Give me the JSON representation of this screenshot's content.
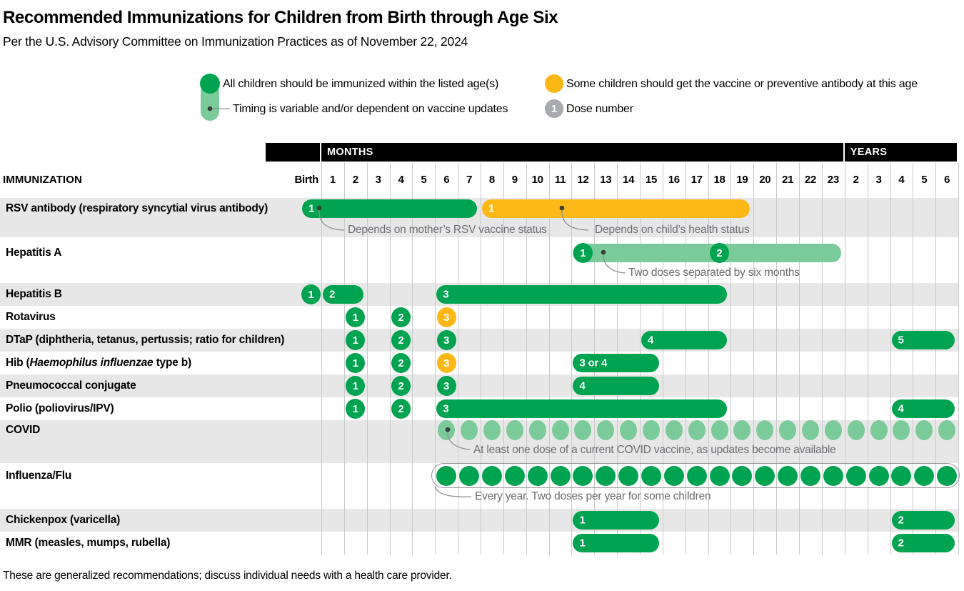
{
  "title": "Recommended Immunizations for Children from Birth through Age Six",
  "subtitle": "Per the U.S. Advisory Committee on Immunization Practices as of November 22, 2024",
  "footnote": "These are generalized recommendations; discuss individual needs with a health care provider.",
  "legend": {
    "all_children": "All children should be immunized within the listed age(s)",
    "timing_variable": "Timing is variable and/or dependent on vaccine updates",
    "some_children": "Some children should get the vaccine or preventive antibody at this age",
    "dose_number_label": "Dose number",
    "dose_sample": "1"
  },
  "colors": {
    "green": "#00a34f",
    "light_green": "#7bca9a",
    "yellow": "#fdb717",
    "gray_dose_circle": "#a8aaad",
    "row_stripe": "#e7e7e8",
    "grid_line": "#c9cacc",
    "annotation_text": "#6b6d70",
    "header_bar": "#000000"
  },
  "chart_data": {
    "type": "table",
    "subtype": "immunization-schedule-timeline",
    "row_header": "IMMUNIZATION",
    "axis_groups": [
      {
        "label": "MONTHS"
      },
      {
        "label": "YEARS"
      }
    ],
    "columns": [
      "Birth",
      "1",
      "2",
      "3",
      "4",
      "5",
      "6",
      "7",
      "8",
      "9",
      "10",
      "11",
      "12",
      "13",
      "14",
      "15",
      "16",
      "17",
      "18",
      "19",
      "20",
      "21",
      "22",
      "23",
      "2",
      "3",
      "4",
      "5",
      "6"
    ],
    "rows": [
      {
        "label_parts": [
          [
            "RSV antibody (respiratory syncytial virus antibody)",
            false
          ]
        ],
        "marks": [
          {
            "kind": "bar",
            "color": "green",
            "dose": "1",
            "from": 0,
            "to": 7
          },
          {
            "kind": "bar",
            "color": "yellow",
            "dose": "1",
            "from": 8,
            "to": 19
          }
        ],
        "notes": [
          "Depends on mother’s RSV vaccine status",
          "Depends on child’s health status"
        ]
      },
      {
        "label_parts": [
          [
            "Hepatitis A",
            false
          ]
        ],
        "marks": [
          {
            "kind": "bar",
            "color": "lightgreen",
            "from": 12,
            "to": 23
          },
          {
            "kind": "circle",
            "color": "green",
            "dose": "1",
            "col": 12
          },
          {
            "kind": "circle",
            "color": "green",
            "dose": "2",
            "col": 18
          }
        ],
        "notes": [
          "Two doses separated by six months"
        ]
      },
      {
        "label_parts": [
          [
            "Hepatitis B",
            false
          ]
        ],
        "marks": [
          {
            "kind": "circle",
            "color": "green",
            "dose": "1",
            "col": 0
          },
          {
            "kind": "bar",
            "color": "green",
            "dose": "2",
            "from": 1,
            "to": 2
          },
          {
            "kind": "bar",
            "color": "green",
            "dose": "3",
            "from": 6,
            "to": 18
          }
        ]
      },
      {
        "label_parts": [
          [
            "Rotavirus",
            false
          ]
        ],
        "marks": [
          {
            "kind": "circle",
            "color": "green",
            "dose": "1",
            "col": 2
          },
          {
            "kind": "circle",
            "color": "green",
            "dose": "2",
            "col": 4
          },
          {
            "kind": "circle",
            "color": "yellow",
            "dose": "3",
            "col": 6
          }
        ]
      },
      {
        "label_parts": [
          [
            "DTaP (diphtheria, tetanus, pertussis; ratio for children)",
            false
          ]
        ],
        "marks": [
          {
            "kind": "circle",
            "color": "green",
            "dose": "1",
            "col": 2
          },
          {
            "kind": "circle",
            "color": "green",
            "dose": "2",
            "col": 4
          },
          {
            "kind": "circle",
            "color": "green",
            "dose": "3",
            "col": 6
          },
          {
            "kind": "bar",
            "color": "green",
            "dose": "4",
            "from": 15,
            "to": 18
          },
          {
            "kind": "bar",
            "color": "green",
            "dose": "5",
            "from": 26,
            "to": 28
          }
        ]
      },
      {
        "label_parts": [
          [
            "Hib (",
            false
          ],
          [
            "Haemophilus influenzae",
            true
          ],
          [
            " type b)",
            false
          ]
        ],
        "marks": [
          {
            "kind": "circle",
            "color": "green",
            "dose": "1",
            "col": 2
          },
          {
            "kind": "circle",
            "color": "green",
            "dose": "2",
            "col": 4
          },
          {
            "kind": "circle",
            "color": "yellow",
            "dose": "3",
            "col": 6
          },
          {
            "kind": "bar",
            "color": "green",
            "dose": "3 or 4",
            "from": 12,
            "to": 15
          }
        ]
      },
      {
        "label_parts": [
          [
            "Pneumococcal conjugate",
            false
          ]
        ],
        "marks": [
          {
            "kind": "circle",
            "color": "green",
            "dose": "1",
            "col": 2
          },
          {
            "kind": "circle",
            "color": "green",
            "dose": "2",
            "col": 4
          },
          {
            "kind": "circle",
            "color": "green",
            "dose": "3",
            "col": 6
          },
          {
            "kind": "bar",
            "color": "green",
            "dose": "4",
            "from": 12,
            "to": 15
          }
        ]
      },
      {
        "label_parts": [
          [
            "Polio (poliovirus/IPV)",
            false
          ]
        ],
        "marks": [
          {
            "kind": "circle",
            "color": "green",
            "dose": "1",
            "col": 2
          },
          {
            "kind": "circle",
            "color": "green",
            "dose": "2",
            "col": 4
          },
          {
            "kind": "bar",
            "color": "green",
            "dose": "3",
            "from": 6,
            "to": 18
          },
          {
            "kind": "bar",
            "color": "green",
            "dose": "4",
            "from": 26,
            "to": 28
          }
        ]
      },
      {
        "label_parts": [
          [
            "COVID",
            false
          ]
        ],
        "marks": [
          {
            "kind": "dots",
            "color": "lightgreen",
            "from": 6,
            "to": 28
          }
        ],
        "notes": [
          "At least one dose of a current COVID vaccine, as updates become available"
        ]
      },
      {
        "label_parts": [
          [
            "Influenza/Flu",
            false
          ]
        ],
        "marks": [
          {
            "kind": "dots",
            "color": "green",
            "from": 6,
            "to": 28,
            "outline": true
          }
        ],
        "notes": [
          "Every year. Two doses per year for some children"
        ]
      },
      {
        "label_parts": [
          [
            "Chickenpox (varicella)",
            false
          ]
        ],
        "marks": [
          {
            "kind": "bar",
            "color": "green",
            "dose": "1",
            "from": 12,
            "to": 15
          },
          {
            "kind": "bar",
            "color": "green",
            "dose": "2",
            "from": 26,
            "to": 28
          }
        ]
      },
      {
        "label_parts": [
          [
            "MMR (measles, mumps, rubella)",
            false
          ]
        ],
        "marks": [
          {
            "kind": "bar",
            "color": "green",
            "dose": "1",
            "from": 12,
            "to": 15
          },
          {
            "kind": "bar",
            "color": "green",
            "dose": "2",
            "from": 26,
            "to": 28
          }
        ]
      }
    ]
  }
}
